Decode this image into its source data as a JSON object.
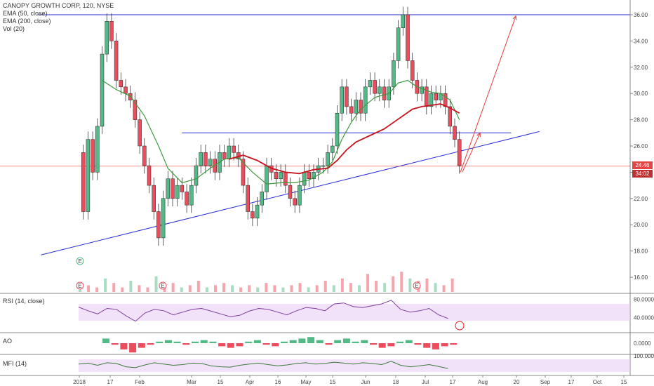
{
  "chart_data": {
    "type": "candlestick",
    "title": "CANOPY GROWTH CORP, 120, NYSE",
    "indicators": [
      "EMA (50, close)",
      "EMA (200, close)",
      "Vol (20)"
    ],
    "price_axis": {
      "min": 16,
      "max": 36,
      "ticks": [
        "36.00",
        "34.00",
        "32.00",
        "30.00",
        "28.00",
        "26.00",
        "24.00",
        "22.00",
        "20.00",
        "18.00",
        "16.00"
      ]
    },
    "time_axis_labels": [
      "2018",
      "17",
      "Feb",
      "Mar",
      "15",
      "Apr",
      "16",
      "May",
      "15",
      "Jun",
      "18",
      "Jul",
      "17",
      "Aug",
      "20",
      "Sep",
      "17",
      "Oct",
      "15"
    ],
    "last_price": "24.46",
    "countdown": "34:02",
    "price_path": [
      [
        0.0,
        25.5
      ],
      [
        0.5,
        21.0
      ],
      [
        1.0,
        26.5
      ],
      [
        1.5,
        24.0
      ],
      [
        2.0,
        27.5
      ],
      [
        2.5,
        33.0
      ],
      [
        3.0,
        35.5
      ],
      [
        3.5,
        34.0
      ],
      [
        4.0,
        31.0
      ],
      [
        4.5,
        30.5
      ],
      [
        5.0,
        30.0
      ],
      [
        5.5,
        29.5
      ],
      [
        6.0,
        28.0
      ],
      [
        6.5,
        26.0
      ],
      [
        7.0,
        24.5
      ],
      [
        7.5,
        23.0
      ],
      [
        8.0,
        21.0
      ],
      [
        8.5,
        19.0
      ],
      [
        9.0,
        22.0
      ],
      [
        9.5,
        23.5
      ],
      [
        10.0,
        22.0
      ],
      [
        10.5,
        23.0
      ],
      [
        11.0,
        22.5
      ],
      [
        11.5,
        21.5
      ],
      [
        12.0,
        23.0
      ],
      [
        12.5,
        24.5
      ],
      [
        13.0,
        25.5
      ],
      [
        13.5,
        24.5
      ],
      [
        14.0,
        25.0
      ],
      [
        14.5,
        24.0
      ],
      [
        15.0,
        25.5
      ],
      [
        15.5,
        25.0
      ],
      [
        16.0,
        26.0
      ],
      [
        16.5,
        25.5
      ],
      [
        17.0,
        25.0
      ],
      [
        17.5,
        23.0
      ],
      [
        18.0,
        21.0
      ],
      [
        18.5,
        20.5
      ],
      [
        19.0,
        21.5
      ],
      [
        19.5,
        22.5
      ],
      [
        20.0,
        24.5
      ],
      [
        20.5,
        24.0
      ],
      [
        21.0,
        23.5
      ],
      [
        21.5,
        24.0
      ],
      [
        22.0,
        23.0
      ],
      [
        22.5,
        22.0
      ],
      [
        23.0,
        21.5
      ],
      [
        23.5,
        23.0
      ],
      [
        24.0,
        24.0
      ],
      [
        24.5,
        23.5
      ],
      [
        25.0,
        24.0
      ],
      [
        25.5,
        24.5
      ],
      [
        26.0,
        24.5
      ],
      [
        26.5,
        25.5
      ],
      [
        27.0,
        26.0
      ],
      [
        27.5,
        28.5
      ],
      [
        28.0,
        30.5
      ],
      [
        28.5,
        29.0
      ],
      [
        29.0,
        28.5
      ],
      [
        29.5,
        29.5
      ],
      [
        30.0,
        28.5
      ],
      [
        30.5,
        30.5
      ],
      [
        31.0,
        31.0
      ],
      [
        31.5,
        30.0
      ],
      [
        32.0,
        30.5
      ],
      [
        32.5,
        29.5
      ],
      [
        33.0,
        30.5
      ],
      [
        33.5,
        32.5
      ],
      [
        34.0,
        35.0
      ],
      [
        34.5,
        36.0
      ],
      [
        35.0,
        32.5
      ],
      [
        35.5,
        31.0
      ],
      [
        36.0,
        30.0
      ],
      [
        36.5,
        30.5
      ],
      [
        37.0,
        29.0
      ],
      [
        37.5,
        30.0
      ],
      [
        38.0,
        29.5
      ],
      [
        38.5,
        30.0
      ],
      [
        39.0,
        29.0
      ],
      [
        39.5,
        27.5
      ],
      [
        40.0,
        26.5
      ],
      [
        40.5,
        24.5
      ]
    ],
    "ema50_path": [
      [
        2.5,
        31.0
      ],
      [
        4.0,
        30.3
      ],
      [
        5.5,
        29.8
      ],
      [
        7.0,
        28.3
      ],
      [
        8.5,
        26.0
      ],
      [
        9.5,
        24.3
      ],
      [
        11.0,
        23.2
      ],
      [
        12.5,
        23.5
      ],
      [
        14.0,
        24.3
      ],
      [
        15.5,
        25.0
      ],
      [
        17.0,
        25.1
      ],
      [
        18.5,
        24.0
      ],
      [
        20.0,
        23.1
      ],
      [
        21.5,
        23.2
      ],
      [
        23.0,
        23.2
      ],
      [
        24.5,
        23.4
      ],
      [
        26.0,
        24.0
      ],
      [
        27.0,
        24.8
      ],
      [
        28.0,
        26.5
      ],
      [
        29.0,
        27.8
      ],
      [
        30.0,
        28.8
      ],
      [
        31.5,
        29.7
      ],
      [
        33.0,
        30.0
      ],
      [
        34.0,
        30.8
      ],
      [
        35.0,
        31.0
      ],
      [
        36.0,
        30.5
      ],
      [
        37.5,
        30.1
      ],
      [
        38.5,
        30.0
      ],
      [
        39.5,
        29.5
      ],
      [
        40.5,
        28.0
      ]
    ],
    "ema200_path": [
      [
        16.0,
        25.0
      ],
      [
        17.5,
        25.3
      ],
      [
        19.0,
        24.9
      ],
      [
        20.5,
        24.3
      ],
      [
        22.0,
        24.0
      ],
      [
        23.5,
        23.9
      ],
      [
        25.0,
        24.2
      ],
      [
        26.5,
        24.3
      ],
      [
        27.5,
        24.9
      ],
      [
        28.5,
        25.7
      ],
      [
        29.5,
        26.3
      ],
      [
        31.0,
        26.8
      ],
      [
        32.5,
        27.3
      ],
      [
        33.5,
        27.8
      ],
      [
        34.5,
        28.3
      ],
      [
        35.5,
        28.8
      ],
      [
        36.5,
        29.0
      ],
      [
        37.5,
        29.1
      ],
      [
        38.5,
        29.2
      ],
      [
        39.5,
        28.9
      ],
      [
        40.5,
        28.5
      ]
    ],
    "trendline_support": [
      [
        -4.0,
        17.7
      ],
      [
        49.0,
        27.1
      ]
    ],
    "resistance_line": 36.0,
    "mid_line": {
      "from": 11.0,
      "to": 46.0,
      "value": 27.0
    },
    "projection_arrow_1": [
      [
        40.6,
        24.0
      ],
      [
        46.5,
        35.9
      ]
    ],
    "projection_arrow_2": [
      [
        40.8,
        24.0
      ],
      [
        42.7,
        27.0
      ]
    ],
    "volume_path": [
      1,
      3,
      2,
      6,
      4,
      2,
      5,
      3,
      2,
      7,
      3,
      4,
      2,
      3,
      5,
      2,
      3,
      4,
      3,
      2,
      3,
      2,
      4,
      3,
      2,
      3,
      4,
      2,
      3,
      5,
      3,
      6,
      4,
      3,
      8,
      5,
      4,
      7,
      9,
      6,
      5,
      6,
      4,
      3,
      6
    ],
    "rsi_label": "RSI (14, close)",
    "rsi_ticks": [
      "80.0000",
      "40.0000"
    ],
    "rsi_path": [
      63,
      55,
      48,
      60,
      58,
      44,
      32,
      50,
      58,
      55,
      46,
      52,
      58,
      60,
      54,
      48,
      42,
      45,
      54,
      60,
      58,
      52,
      46,
      55,
      62,
      60,
      55,
      70,
      72,
      64,
      62,
      66,
      70,
      78,
      58,
      52,
      55,
      60,
      46,
      38
    ],
    "ao_label": "AO",
    "ao_tick": "0.0000",
    "ao_path": [
      3,
      -1,
      -4,
      -6,
      -3,
      -1,
      1,
      2,
      1,
      -1,
      1,
      2,
      1,
      -2,
      -3,
      -2,
      1,
      2,
      -1,
      -2,
      1,
      2,
      3,
      4,
      2,
      -1,
      2,
      3,
      1,
      2,
      -1,
      -3,
      -2,
      1,
      2,
      -1,
      -3,
      -4,
      -2,
      -1
    ],
    "mfi_label": "MFI (14)",
    "mfi_tick": "100.0000",
    "mfi_path": [
      55,
      60,
      48,
      62,
      58,
      40,
      35,
      50,
      62,
      55,
      48,
      52,
      60,
      58,
      45,
      40,
      38,
      48,
      55,
      60,
      52,
      45,
      50,
      58,
      62,
      55,
      58,
      65,
      60,
      55,
      62,
      58,
      52,
      70,
      48,
      40,
      45,
      52,
      42,
      30
    ]
  },
  "colors": {
    "up": "#53b987",
    "down": "#eb4d5c",
    "ema50": "#3c9a3c",
    "ema200": "#c8141e",
    "trend": "#2a2adb",
    "arrow": "#e83e3e",
    "rsi": "#7d3f98",
    "mfi": "#3c7a3c",
    "band": "#e8cff5",
    "tag_red": "#e64444",
    "tag_dark": "#c13030"
  }
}
